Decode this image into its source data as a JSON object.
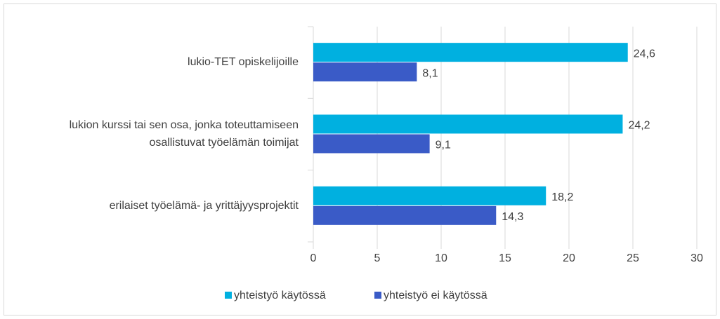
{
  "chart_data": {
    "type": "hbar",
    "categories": [
      "lukio-TET opiskelijoille",
      "lukion kurssi tai sen osa, jonka toteuttamiseen\nosallistuvat työelämän toimijat",
      "erilaiset työelämä- ja yrittäjyysprojektit"
    ],
    "series": [
      {
        "name": "yhteistyö käytössä",
        "color": "#00b0e0",
        "values": [
          24.6,
          24.2,
          18.2
        ],
        "value_labels": [
          "24,6",
          "24,2",
          "18,2"
        ]
      },
      {
        "name": "yhteistyö ei käytössä",
        "color": "#3a5bc7",
        "values": [
          8.1,
          9.1,
          14.3
        ],
        "value_labels": [
          "8,1",
          "9,1",
          "14,3"
        ]
      }
    ],
    "xlim": [
      0,
      30
    ],
    "xticks": [
      0,
      5,
      10,
      15,
      20,
      25,
      30
    ],
    "grid": true,
    "legend": "bottom"
  }
}
